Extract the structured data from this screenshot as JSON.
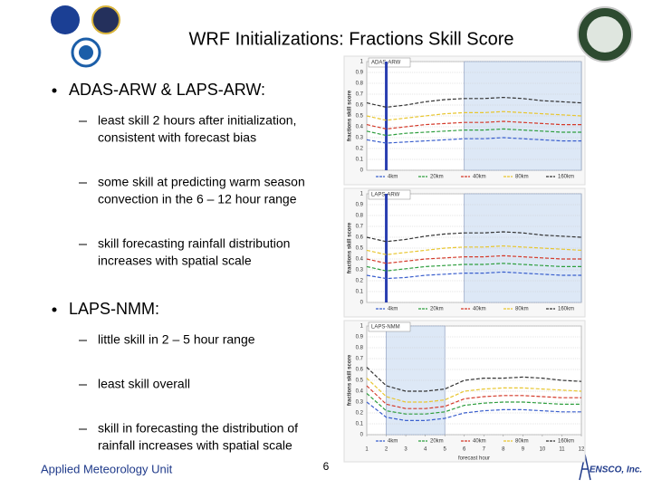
{
  "header": {
    "title": "WRF Initializations: Fractions Skill Score"
  },
  "bullets": [
    {
      "text": "ADAS-ARW & LAPS-ARW:",
      "items": [
        [
          "least skill 2 hours after initialization,",
          "consistent with forecast bias"
        ],
        [
          "some skill at predicting warm season",
          "convection in the 6 – 12 hour range"
        ],
        [
          "skill forecasting rainfall distribution",
          "increases with spatial scale"
        ]
      ]
    },
    {
      "text": "LAPS-NMM:",
      "items": [
        [
          "little skill in 2 – 5 hour range"
        ],
        [
          "least skill overall"
        ],
        [
          "skill in forecasting the distribution of",
          "rainfall increases with spatial scale"
        ]
      ]
    }
  ],
  "footer": {
    "left": "Applied Meteorology Unit",
    "page": "6",
    "logo": "ENSCO, Inc."
  },
  "chart_data": [
    {
      "type": "line",
      "title": "ADAS-ARW",
      "y_label": "fractions skill score",
      "x": [
        1,
        2,
        3,
        4,
        5,
        6,
        7,
        8,
        9,
        10,
        11,
        12
      ],
      "xlim": [
        1,
        12
      ],
      "ylim": [
        0,
        1
      ],
      "yticks": [
        0,
        0.1,
        0.2,
        0.3,
        0.4,
        0.5,
        0.6,
        0.7,
        0.8,
        0.9,
        1
      ],
      "grid": true,
      "highlight_x": [
        6,
        12
      ],
      "marker_x": 2,
      "series": [
        {
          "name": "4km",
          "color": "#3a5fcd",
          "values": [
            0.28,
            0.25,
            0.26,
            0.27,
            0.28,
            0.29,
            0.29,
            0.3,
            0.29,
            0.28,
            0.27,
            0.27
          ]
        },
        {
          "name": "20km",
          "color": "#2e9e3e",
          "values": [
            0.36,
            0.32,
            0.34,
            0.35,
            0.36,
            0.37,
            0.37,
            0.38,
            0.37,
            0.36,
            0.35,
            0.35
          ]
        },
        {
          "name": "40km",
          "color": "#d43a2a",
          "values": [
            0.42,
            0.38,
            0.4,
            0.42,
            0.43,
            0.44,
            0.44,
            0.45,
            0.44,
            0.43,
            0.42,
            0.42
          ]
        },
        {
          "name": "80km",
          "color": "#e8c630",
          "values": [
            0.5,
            0.46,
            0.48,
            0.5,
            0.52,
            0.53,
            0.53,
            0.54,
            0.53,
            0.52,
            0.51,
            0.5
          ]
        },
        {
          "name": "160km",
          "color": "#333333",
          "values": [
            0.62,
            0.58,
            0.6,
            0.63,
            0.65,
            0.66,
            0.66,
            0.67,
            0.66,
            0.64,
            0.63,
            0.62
          ]
        }
      ]
    },
    {
      "type": "line",
      "title": "LAPS-ARW",
      "y_label": "fractions skill score",
      "x": [
        1,
        2,
        3,
        4,
        5,
        6,
        7,
        8,
        9,
        10,
        11,
        12
      ],
      "xlim": [
        1,
        12
      ],
      "ylim": [
        0,
        1
      ],
      "yticks": [
        0,
        0.1,
        0.2,
        0.3,
        0.4,
        0.5,
        0.6,
        0.7,
        0.8,
        0.9,
        1
      ],
      "grid": true,
      "highlight_x": [
        6,
        12
      ],
      "marker_x": 2,
      "series": [
        {
          "name": "4km",
          "color": "#3a5fcd",
          "values": [
            0.25,
            0.22,
            0.23,
            0.25,
            0.26,
            0.27,
            0.27,
            0.28,
            0.27,
            0.26,
            0.25,
            0.25
          ]
        },
        {
          "name": "20km",
          "color": "#2e9e3e",
          "values": [
            0.33,
            0.29,
            0.31,
            0.33,
            0.34,
            0.35,
            0.35,
            0.36,
            0.35,
            0.34,
            0.33,
            0.33
          ]
        },
        {
          "name": "40km",
          "color": "#d43a2a",
          "values": [
            0.4,
            0.36,
            0.38,
            0.4,
            0.41,
            0.42,
            0.42,
            0.43,
            0.42,
            0.41,
            0.4,
            0.4
          ]
        },
        {
          "name": "80km",
          "color": "#e8c630",
          "values": [
            0.48,
            0.44,
            0.46,
            0.48,
            0.5,
            0.51,
            0.51,
            0.52,
            0.51,
            0.5,
            0.49,
            0.48
          ]
        },
        {
          "name": "160km",
          "color": "#333333",
          "values": [
            0.6,
            0.56,
            0.58,
            0.61,
            0.63,
            0.64,
            0.64,
            0.65,
            0.64,
            0.62,
            0.61,
            0.6
          ]
        }
      ]
    },
    {
      "type": "line",
      "title": "LAPS-NMM",
      "y_label": "fractions skill score",
      "x_label": "forecast hour",
      "x": [
        1,
        2,
        3,
        4,
        5,
        6,
        7,
        8,
        9,
        10,
        11,
        12
      ],
      "xlim": [
        1,
        12
      ],
      "xticks": [
        1,
        2,
        3,
        4,
        5,
        6,
        7,
        8,
        9,
        10,
        11,
        12
      ],
      "ylim": [
        0,
        1
      ],
      "yticks": [
        0,
        0.1,
        0.2,
        0.3,
        0.4,
        0.5,
        0.6,
        0.7,
        0.8,
        0.9,
        1
      ],
      "grid": true,
      "highlight_x": [
        2,
        5
      ],
      "series": [
        {
          "name": "4km",
          "color": "#3a5fcd",
          "values": [
            0.3,
            0.16,
            0.13,
            0.13,
            0.15,
            0.2,
            0.22,
            0.23,
            0.23,
            0.22,
            0.21,
            0.21
          ]
        },
        {
          "name": "20km",
          "color": "#2e9e3e",
          "values": [
            0.38,
            0.22,
            0.19,
            0.19,
            0.21,
            0.27,
            0.29,
            0.3,
            0.3,
            0.29,
            0.28,
            0.28
          ]
        },
        {
          "name": "40km",
          "color": "#d43a2a",
          "values": [
            0.45,
            0.28,
            0.24,
            0.24,
            0.26,
            0.33,
            0.35,
            0.36,
            0.36,
            0.35,
            0.34,
            0.34
          ]
        },
        {
          "name": "80km",
          "color": "#e8c630",
          "values": [
            0.52,
            0.35,
            0.3,
            0.3,
            0.32,
            0.4,
            0.42,
            0.43,
            0.43,
            0.42,
            0.41,
            0.4
          ]
        },
        {
          "name": "160km",
          "color": "#333333",
          "values": [
            0.62,
            0.45,
            0.4,
            0.4,
            0.42,
            0.5,
            0.52,
            0.52,
            0.53,
            0.52,
            0.5,
            0.49
          ]
        }
      ]
    }
  ]
}
